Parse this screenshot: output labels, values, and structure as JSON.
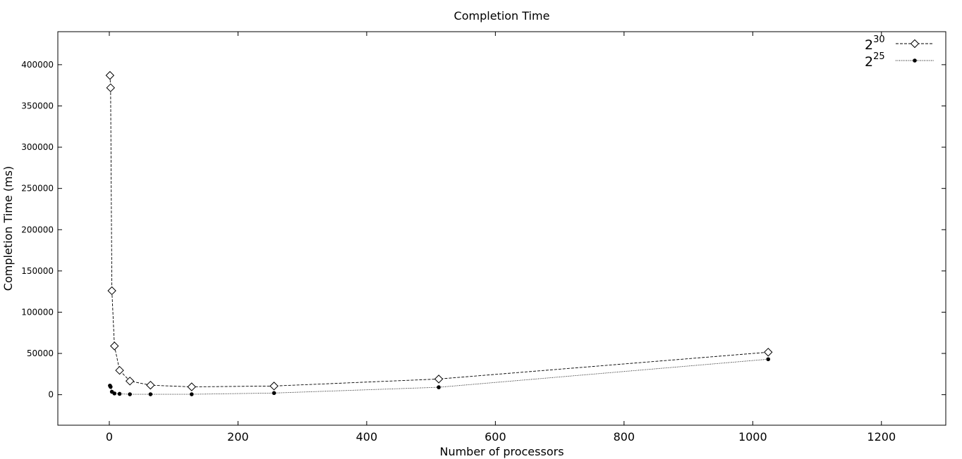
{
  "chart_data": {
    "type": "line",
    "title": "Completion Time",
    "xlabel": "Number of processors",
    "ylabel": "Completion Time (ms)",
    "xlim": [
      -80,
      1300
    ],
    "ylim": [
      -37000,
      440000
    ],
    "xticks": [
      0,
      200,
      400,
      600,
      800,
      1000,
      1200
    ],
    "xtick_labels": [
      "0",
      "200",
      "400",
      "600",
      "800",
      "1000",
      "1200"
    ],
    "yticks": [
      0,
      50000,
      100000,
      150000,
      200000,
      250000,
      300000,
      350000,
      400000
    ],
    "ytick_labels": [
      "0",
      "50000",
      "100000",
      "150000",
      "200000",
      "250000",
      "300000",
      "350000",
      "400000"
    ],
    "grid": false,
    "legend_position": "top-right",
    "series": [
      {
        "name_base": "2",
        "name_exp": "30",
        "line_style": "dashed",
        "marker": "diamond-open",
        "color": "#000000",
        "x": [
          1,
          2,
          4,
          8,
          16,
          32,
          64,
          128,
          256,
          512,
          1024
        ],
        "y": [
          387000,
          372000,
          126000,
          59000,
          29500,
          16500,
          11500,
          9500,
          10500,
          19000,
          51500
        ]
      },
      {
        "name_base": "2",
        "name_exp": "25",
        "line_style": "dotted",
        "marker": "circle-filled",
        "color": "#000000",
        "x": [
          1,
          2,
          4,
          8,
          16,
          32,
          64,
          128,
          256,
          512,
          1024
        ],
        "y": [
          11000,
          9500,
          3500,
          1500,
          1000,
          500,
          500,
          500,
          2000,
          9000,
          43000
        ]
      }
    ]
  }
}
